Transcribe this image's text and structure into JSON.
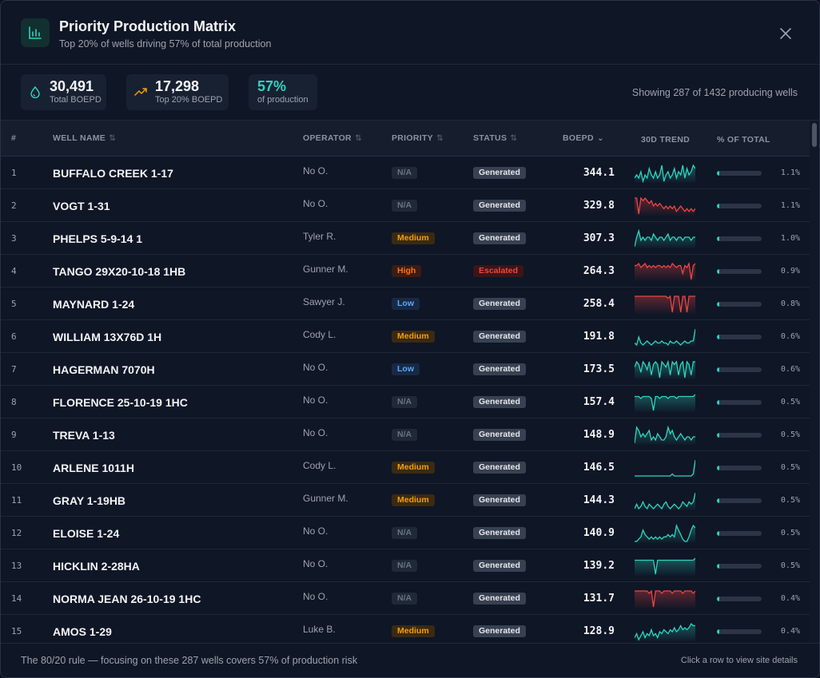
{
  "header": {
    "title": "Priority Production Matrix",
    "subtitle": "Top 20% of wells driving 57% of total production",
    "icon": "bar-chart-icon",
    "close_icon": "close-icon"
  },
  "stats": [
    {
      "value": "30,491",
      "label": "Total BOEPD",
      "icon": "droplet-icon",
      "color": "#2dd4bf"
    },
    {
      "value": "17,298",
      "label": "Top 20% BOEPD",
      "icon": "trending-up-icon",
      "color": "#f59e0b"
    },
    {
      "value": "57%",
      "label": "of production",
      "icon": "",
      "color": "#2dd4bf"
    }
  ],
  "showing_text": "Showing 287 of 1432 producing wells",
  "columns": {
    "idx": "#",
    "name": "WELL NAME",
    "operator": "OPERATOR",
    "priority": "PRIORITY",
    "status": "STATUS",
    "boepd": "BOEPD",
    "trend": "30D TREND",
    "pct": "% OF TOTAL"
  },
  "colors": {
    "accent": "#2dd4bf",
    "trend_up": "#2dd4bf",
    "trend_down": "#ef4444",
    "priority_na": {
      "bg": "#1f2937",
      "fg": "#6b7280"
    },
    "priority_medium": {
      "bg": "#3a2a12",
      "fg": "#f59e0b"
    },
    "priority_high": {
      "bg": "#3b1c16",
      "fg": "#f97316"
    },
    "priority_low": {
      "bg": "#172a45",
      "fg": "#60a5fa"
    },
    "status_generated": {
      "bg": "#374151",
      "fg": "#e5e7eb"
    },
    "status_escalated": {
      "bg": "#3b1518",
      "fg": "#ef4444"
    }
  },
  "rows": [
    {
      "idx": "1",
      "name": "BUFFALO CREEK 1-17",
      "operator": "No O.",
      "priority": "N/A",
      "status": "Generated",
      "boepd": "344.1",
      "pct": "1.1%",
      "share": 0.011,
      "trend_dir": "up",
      "trend": [
        5,
        6,
        5,
        7,
        4,
        6,
        5,
        8,
        6,
        5,
        7,
        5,
        6,
        9,
        4,
        6,
        7,
        5,
        6,
        8,
        5,
        7,
        6,
        9,
        5,
        8,
        6,
        7,
        9,
        8
      ]
    },
    {
      "idx": "2",
      "name": "VOGT 1-31",
      "operator": "No O.",
      "priority": "N/A",
      "status": "Generated",
      "boepd": "329.8",
      "pct": "1.1%",
      "share": 0.011,
      "trend_dir": "down",
      "trend": [
        9,
        9,
        3,
        9,
        8,
        9,
        8,
        7,
        8,
        6,
        7,
        6,
        7,
        6,
        5,
        6,
        5,
        6,
        5,
        6,
        4,
        5,
        6,
        5,
        4,
        5,
        4,
        5,
        4,
        5
      ]
    },
    {
      "idx": "3",
      "name": "PHELPS 5-9-14 1",
      "operator": "Tyler R.",
      "priority": "Medium",
      "status": "Generated",
      "boepd": "307.3",
      "pct": "1.0%",
      "share": 0.01,
      "trend_dir": "up",
      "trend": [
        4,
        7,
        9,
        6,
        7,
        6,
        7,
        7,
        6,
        8,
        7,
        6,
        7,
        7,
        6,
        7,
        8,
        6,
        7,
        7,
        6,
        7,
        7,
        6,
        7,
        7,
        7,
        6,
        7,
        7
      ]
    },
    {
      "idx": "4",
      "name": "TANGO 29X20-10-18 1HB",
      "operator": "Gunner M.",
      "priority": "High",
      "status": "Escalated",
      "boepd": "264.3",
      "pct": "0.9%",
      "share": 0.009,
      "trend_dir": "down",
      "trend": [
        8,
        8,
        9,
        7,
        8,
        9,
        7,
        8,
        7,
        8,
        7,
        8,
        8,
        7,
        8,
        7,
        8,
        7,
        9,
        8,
        7,
        8,
        8,
        4,
        8,
        7,
        9,
        1,
        8,
        9
      ]
    },
    {
      "idx": "5",
      "name": "MAYNARD 1-24",
      "operator": "Sawyer J.",
      "priority": "Low",
      "status": "Generated",
      "boepd": "258.4",
      "pct": "0.8%",
      "share": 0.008,
      "trend_dir": "down",
      "trend": [
        9,
        9,
        9,
        9,
        9,
        9,
        9,
        9,
        9,
        9,
        9,
        9,
        9,
        9,
        9,
        9,
        8,
        9,
        1,
        9,
        9,
        9,
        1,
        9,
        9,
        1,
        9,
        9,
        9,
        9
      ]
    },
    {
      "idx": "6",
      "name": "WILLIAM 13X76D 1H",
      "operator": "Cody L.",
      "priority": "Medium",
      "status": "Generated",
      "boepd": "191.8",
      "pct": "0.6%",
      "share": 0.006,
      "trend_dir": "up",
      "trend": [
        2,
        1,
        5,
        2,
        1,
        2,
        3,
        2,
        1,
        2,
        3,
        2,
        2,
        3,
        2,
        2,
        1,
        3,
        2,
        2,
        3,
        2,
        1,
        2,
        3,
        2,
        2,
        3,
        3,
        9
      ]
    },
    {
      "idx": "7",
      "name": "HAGERMAN 7070H",
      "operator": "No O.",
      "priority": "Low",
      "status": "Generated",
      "boepd": "173.5",
      "pct": "0.6%",
      "share": 0.006,
      "trend_dir": "up",
      "trend": [
        6,
        8,
        7,
        4,
        8,
        7,
        5,
        8,
        3,
        7,
        8,
        7,
        2,
        8,
        7,
        6,
        8,
        3,
        8,
        7,
        8,
        3,
        7,
        8,
        2,
        8,
        7,
        3,
        8,
        8
      ]
    },
    {
      "idx": "8",
      "name": "FLORENCE 25-10-19 1HC",
      "operator": "No O.",
      "priority": "N/A",
      "status": "Generated",
      "boepd": "157.4",
      "pct": "0.5%",
      "share": 0.005,
      "trend_dir": "up",
      "trend": [
        8,
        8,
        8,
        7,
        8,
        8,
        8,
        8,
        7,
        1,
        8,
        8,
        7,
        8,
        8,
        8,
        7,
        8,
        8,
        8,
        7,
        8,
        8,
        8,
        8,
        8,
        8,
        8,
        8,
        9
      ]
    },
    {
      "idx": "9",
      "name": "TREVA 1-13",
      "operator": "No O.",
      "priority": "N/A",
      "status": "Generated",
      "boepd": "148.9",
      "pct": "0.5%",
      "share": 0.005,
      "trend_dir": "up",
      "trend": [
        4,
        9,
        8,
        6,
        7,
        6,
        7,
        8,
        5,
        6,
        5,
        7,
        6,
        5,
        5,
        6,
        9,
        7,
        8,
        6,
        5,
        6,
        7,
        6,
        5,
        6,
        6,
        5,
        6,
        6
      ]
    },
    {
      "idx": "10",
      "name": "ARLENE 1011H",
      "operator": "Cody L.",
      "priority": "Medium",
      "status": "Generated",
      "boepd": "146.5",
      "pct": "0.5%",
      "share": 0.005,
      "trend_dir": "up",
      "trend": [
        1,
        1,
        1,
        1,
        1,
        1,
        1,
        1,
        1,
        1,
        1,
        1,
        1,
        1,
        1,
        1,
        1,
        1,
        2,
        1,
        1,
        1,
        1,
        1,
        1,
        1,
        1,
        1,
        2,
        9
      ]
    },
    {
      "idx": "11",
      "name": "GRAY 1-19HB",
      "operator": "Gunner M.",
      "priority": "Medium",
      "status": "Generated",
      "boepd": "144.3",
      "pct": "0.5%",
      "share": 0.005,
      "trend_dir": "up",
      "trend": [
        2,
        4,
        2,
        3,
        5,
        3,
        2,
        4,
        3,
        2,
        3,
        4,
        3,
        2,
        4,
        5,
        3,
        2,
        3,
        4,
        3,
        2,
        3,
        5,
        4,
        3,
        5,
        4,
        5,
        9
      ]
    },
    {
      "idx": "12",
      "name": "ELOISE 1-24",
      "operator": "No O.",
      "priority": "N/A",
      "status": "Generated",
      "boepd": "140.9",
      "pct": "0.5%",
      "share": 0.005,
      "trend_dir": "up",
      "trend": [
        2,
        2,
        3,
        4,
        7,
        5,
        4,
        3,
        4,
        3,
        4,
        3,
        4,
        3,
        4,
        4,
        5,
        4,
        5,
        4,
        9,
        7,
        5,
        3,
        2,
        2,
        4,
        7,
        9,
        8
      ]
    },
    {
      "idx": "13",
      "name": "HICKLIN 2-28HA",
      "operator": "No O.",
      "priority": "N/A",
      "status": "Generated",
      "boepd": "139.2",
      "pct": "0.5%",
      "share": 0.005,
      "trend_dir": "up",
      "trend": [
        8,
        8,
        8,
        8,
        8,
        8,
        8,
        8,
        8,
        8,
        1,
        8,
        8,
        8,
        8,
        8,
        8,
        8,
        8,
        8,
        8,
        8,
        8,
        8,
        8,
        8,
        8,
        8,
        8,
        9
      ]
    },
    {
      "idx": "14",
      "name": "NORMA JEAN 26-10-19 1HC",
      "operator": "No O.",
      "priority": "N/A",
      "status": "Generated",
      "boepd": "131.7",
      "pct": "0.4%",
      "share": 0.004,
      "trend_dir": "down",
      "trend": [
        8,
        8,
        8,
        8,
        8,
        8,
        8,
        7,
        8,
        1,
        8,
        8,
        8,
        7,
        8,
        8,
        8,
        8,
        7,
        8,
        8,
        8,
        8,
        7,
        8,
        8,
        8,
        8,
        7,
        8
      ]
    },
    {
      "idx": "15",
      "name": "AMOS 1-29",
      "operator": "Luke B.",
      "priority": "Medium",
      "status": "Generated",
      "boepd": "128.9",
      "pct": "0.4%",
      "share": 0.004,
      "trend_dir": "up",
      "trend": [
        2,
        4,
        1,
        3,
        5,
        2,
        4,
        3,
        6,
        3,
        4,
        2,
        5,
        4,
        6,
        5,
        4,
        6,
        5,
        7,
        5,
        6,
        8,
        6,
        7,
        6,
        7,
        9,
        8,
        8
      ]
    }
  ],
  "footer": {
    "left": "The 80/20 rule — focusing on these 287 wells covers 57% of production risk",
    "right": "Click a row to view site details"
  }
}
